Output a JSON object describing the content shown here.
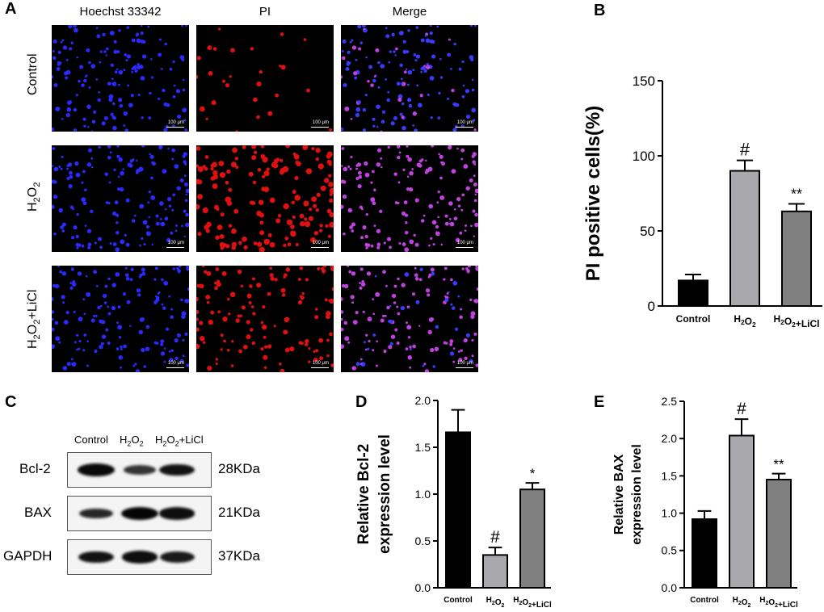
{
  "panels": {
    "a": "A",
    "b": "B",
    "c": "C",
    "d": "D",
    "e": "E"
  },
  "microscopy": {
    "columns": [
      "Hoechst 33342",
      "PI",
      "Merge"
    ],
    "rows": [
      {
        "label": "Control",
        "label_html": "Control"
      },
      {
        "label": "H2O2",
        "label_html": "H<sub>2</sub>O<sub>2</sub>"
      },
      {
        "label": "H2O2+LiCl",
        "label_html": "H<sub>2</sub>O<sub>2</sub>+LiCl"
      }
    ],
    "scale_text": "100 μm"
  },
  "western": {
    "lanes": [
      "Control",
      "H2O2",
      "H2O2+LiCl"
    ],
    "proteins": [
      {
        "name": "Bcl-2",
        "kda": "28KDa",
        "intensity": [
          0.95,
          0.45,
          0.85
        ]
      },
      {
        "name": "BAX",
        "kda": "21KDa",
        "intensity": [
          0.6,
          1.0,
          0.9
        ]
      },
      {
        "name": "GAPDH",
        "kda": "37KDa",
        "intensity": [
          0.85,
          0.9,
          0.75
        ]
      }
    ]
  },
  "chart_data": [
    {
      "id": "B",
      "type": "bar",
      "categories": [
        "Control",
        "H2O2",
        "H2O2+LiCl"
      ],
      "values": [
        17,
        90,
        63
      ],
      "errors": [
        4,
        7,
        5
      ],
      "significance": [
        "",
        "#",
        "**"
      ],
      "colors": [
        "#000000",
        "#a9a9ad",
        "#808080"
      ],
      "xlabel": "",
      "ylabel": "PI positive cells(%)",
      "ylim": [
        0,
        150
      ],
      "yticks": [
        0,
        50,
        100,
        150
      ]
    },
    {
      "id": "D",
      "type": "bar",
      "categories": [
        "Control",
        "H2O2",
        "H2O2+LiCl"
      ],
      "values": [
        1.66,
        0.35,
        1.05
      ],
      "errors": [
        0.24,
        0.08,
        0.07
      ],
      "significance": [
        "",
        "#",
        "*"
      ],
      "colors": [
        "#000000",
        "#a9a9ad",
        "#808080"
      ],
      "xlabel": "",
      "ylabel": [
        "Relative Bcl-2",
        "expression level"
      ],
      "ylim": [
        0,
        2.0
      ],
      "yticks": [
        0.0,
        0.5,
        1.0,
        1.5,
        2.0
      ]
    },
    {
      "id": "E",
      "type": "bar",
      "categories": [
        "Control",
        "H2O2",
        "H2O2+LiCl"
      ],
      "values": [
        0.92,
        2.04,
        1.45
      ],
      "errors": [
        0.11,
        0.22,
        0.08
      ],
      "significance": [
        "",
        "#",
        "**"
      ],
      "colors": [
        "#000000",
        "#a9a9ad",
        "#808080"
      ],
      "xlabel": "",
      "ylabel": [
        "Relative BAX",
        "expression level"
      ],
      "ylim": [
        0,
        2.5
      ],
      "yticks": [
        0.0,
        0.5,
        1.0,
        1.5,
        2.0,
        2.5
      ]
    }
  ]
}
